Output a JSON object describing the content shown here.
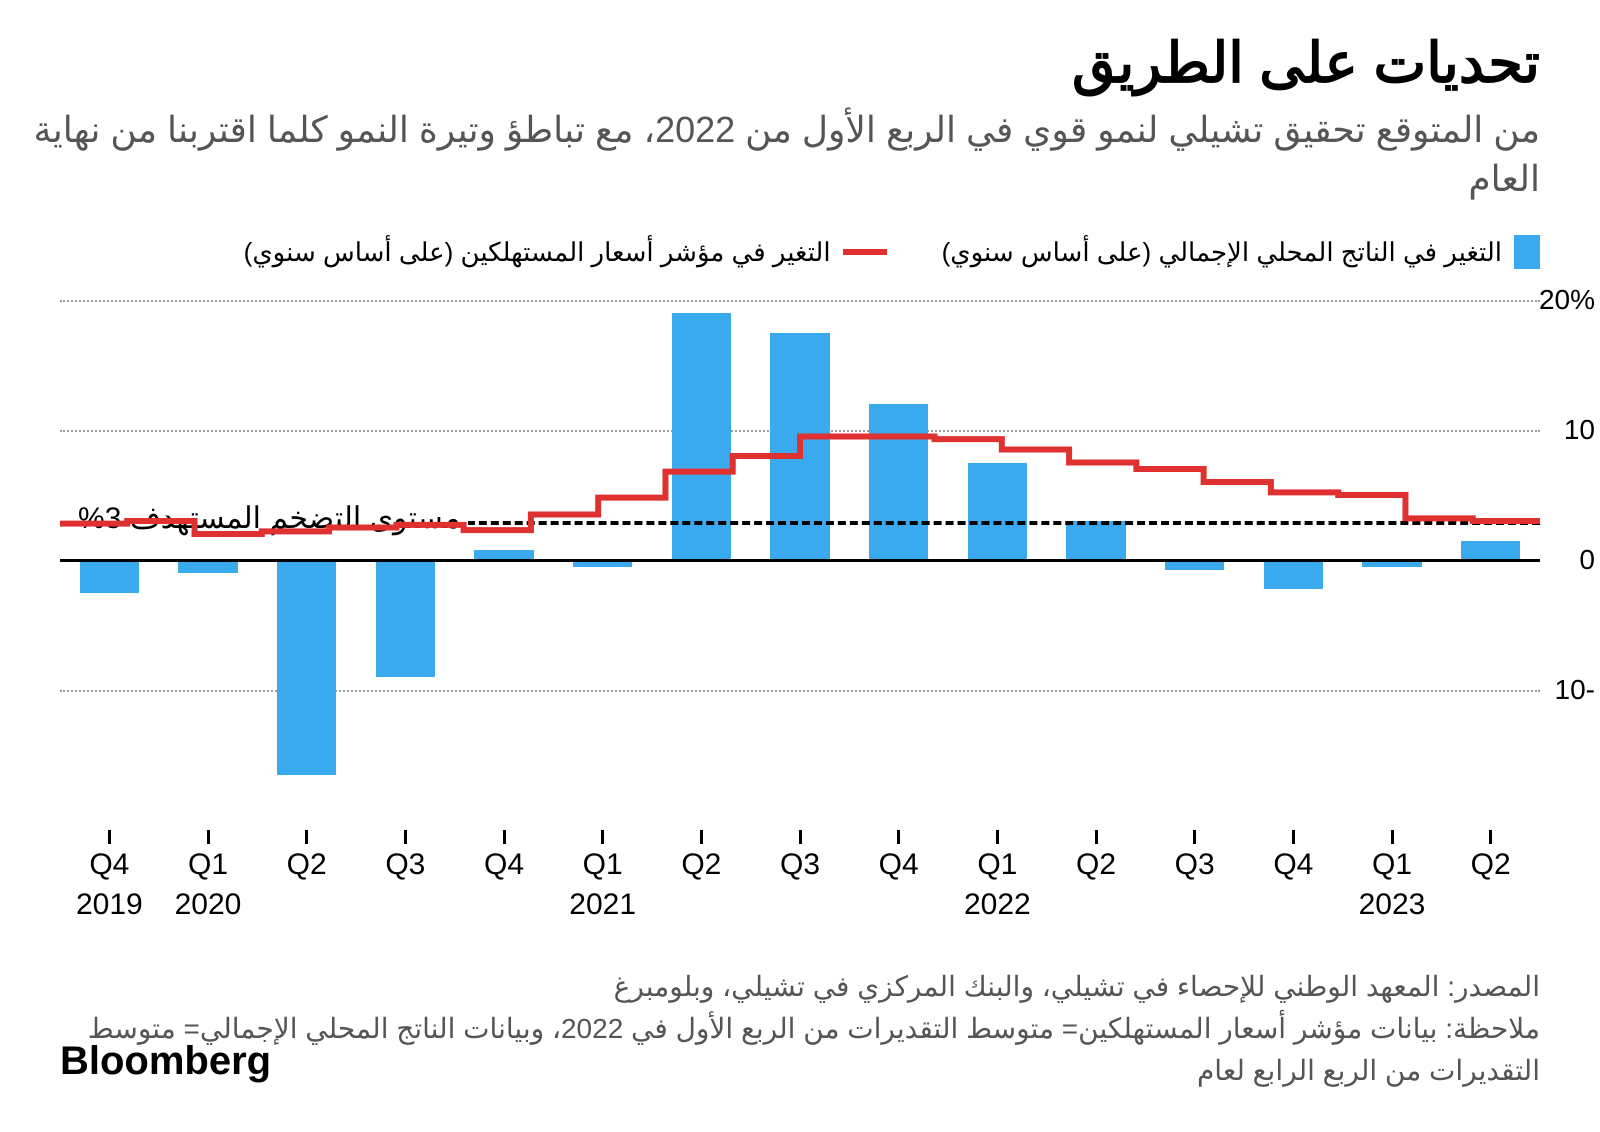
{
  "title": "تحديات على الطريق",
  "subtitle": "من المتوقع تحقيق تشيلي لنمو قوي في الربع الأول من 2022، مع تباطؤ وتيرة النمو كلما اقتربنا من نهاية العام",
  "legend": {
    "gdp": "التغير في الناتج المحلي الإجمالي (على أساس سنوي)",
    "cpi": "التغير في مؤشر أسعار المستهلكين (على أساس سنوي)"
  },
  "chart": {
    "type": "bar+line",
    "ymin": -20,
    "ymax": 20,
    "yticks": [
      -10,
      0,
      10,
      20
    ],
    "ytick_labels": [
      "10-",
      "0",
      "10",
      "20%"
    ],
    "zero": 0,
    "target_value": 3,
    "target_label": "مستوى التضخم المستهدف 3%",
    "bar_color": "#3ba9ee",
    "line_color": "#e03131",
    "line_width": 6,
    "grid_color": "#999999",
    "zero_line_color": "#000000",
    "categories": [
      "Q4",
      "Q1",
      "Q2",
      "Q3",
      "Q4",
      "Q1",
      "Q2",
      "Q3",
      "Q4",
      "Q1",
      "Q2",
      "Q3",
      "Q4",
      "Q1",
      "Q2"
    ],
    "year_labels": {
      "0": "2019",
      "1": "2020",
      "5": "2021",
      "9": "2022",
      "13": "2023"
    },
    "gdp_values": [
      -2.5,
      -1,
      -16.5,
      -9,
      0.8,
      -0.5,
      19,
      17.5,
      12,
      7.5,
      3,
      -0.8,
      -2.2,
      -0.5,
      1.5
    ],
    "cpi_values": [
      2.8,
      3.0,
      2.0,
      2.2,
      2.5,
      2.7,
      2.3,
      3.5,
      4.8,
      6.8,
      8.0,
      9.5,
      9.5,
      9.3,
      8.5,
      7.5,
      7.0,
      6.0,
      5.2,
      5.0,
      3.2,
      3.0
    ],
    "bar_width_ratio": 0.6,
    "title_fontsize": 56,
    "subtitle_fontsize": 36,
    "axis_fontsize": 30
  },
  "footer": {
    "source": "المصدر: المعهد الوطني للإحصاء في تشيلي، والبنك المركزي في تشيلي، وبلومبرغ",
    "note": "ملاحظة: بيانات مؤشر أسعار المستهلكين= متوسط التقديرات من الربع الأول في 2022، وبيانات الناتج المحلي الإجمالي= متوسط التقديرات من الربع الرابع لعام"
  },
  "brand": "Bloomberg"
}
